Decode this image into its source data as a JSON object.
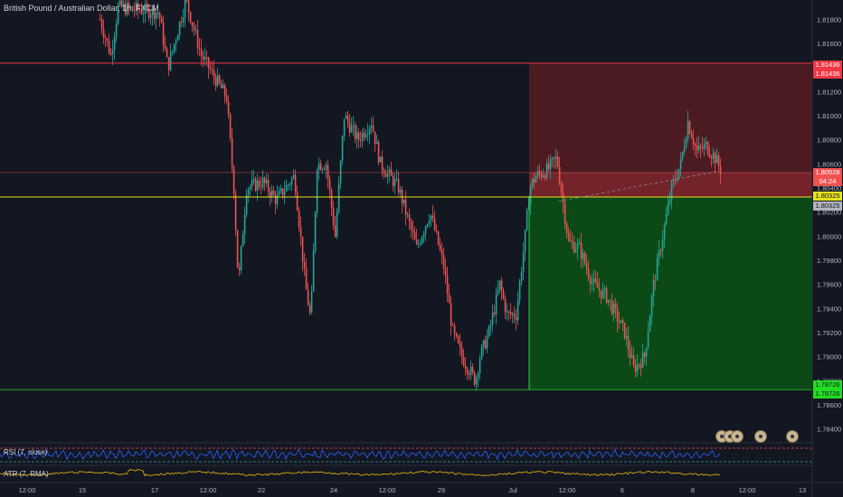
{
  "symbol_title": "British Pound / Australian Dollar, 1h, FXCM",
  "indicators": {
    "rsi_label": "RSI (7, close)",
    "atr_label": "ATR (7, RMA)"
  },
  "price_axis": {
    "ticks": [
      "1.81800",
      "1.81600",
      "1.81436",
      "1.81200",
      "1.81000",
      "1.80800",
      "1.80600",
      "1.80400",
      "1.80200",
      "1.80000",
      "1.79800",
      "1.79600",
      "1.79400",
      "1.79200",
      "1.79000",
      "1.78800",
      "1.78600",
      "1.78400"
    ],
    "ymin": 1.783,
    "ymax": 1.8196
  },
  "time_axis": {
    "labels": [
      "12:00",
      "15",
      "17",
      "12:00",
      "22",
      "24",
      "12:00",
      "29",
      "Jul",
      "12:00",
      "6",
      "8",
      "12:00",
      "13"
    ]
  },
  "position": {
    "stop_price": "1.81436",
    "stop_price_2": "1.81436",
    "current_price": "1.80528",
    "countdown": "04:24",
    "entry_price": "1.80325",
    "entry_price_2": "1.80325",
    "target_price": "1.78726",
    "target_price_2": "1.78726"
  },
  "colors": {
    "background": "#131722",
    "bull": "#26a69a",
    "bear": "#ef5350",
    "stop_zone": "#4c1b22",
    "profit_zone": "#0b4a17",
    "stop_line": "#f23645",
    "target_line": "#22ab22",
    "entry_line": "#e6e21e",
    "rsi": "#2962ff",
    "atr": "#f0b90b"
  },
  "icons": [
    "eye-icon",
    "eye-icon",
    "eye-icon",
    "eye-icon",
    "eye-icon"
  ]
}
